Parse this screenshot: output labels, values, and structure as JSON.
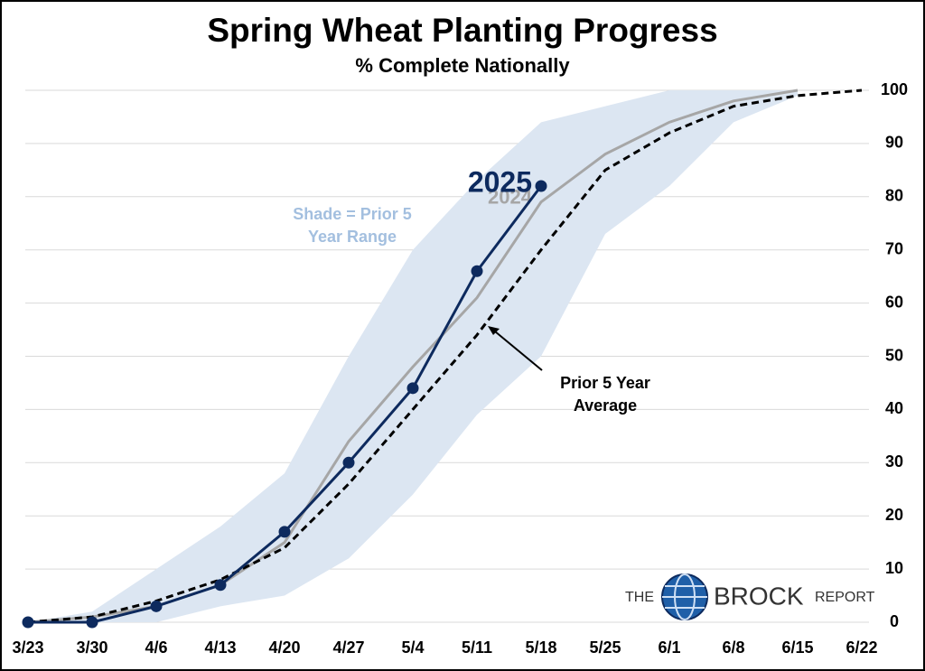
{
  "chart_data": {
    "type": "line",
    "title": "Spring Wheat Planting Progress",
    "subtitle": "% Complete Nationally",
    "categories": [
      "3/23",
      "3/30",
      "4/6",
      "4/13",
      "4/20",
      "4/27",
      "5/4",
      "5/11",
      "5/18",
      "5/25",
      "6/1",
      "6/8",
      "6/15",
      "6/22"
    ],
    "range": {
      "color": "#dce6f2",
      "low": [
        0,
        0,
        0,
        3,
        5,
        12,
        24,
        39,
        50,
        73,
        82,
        94,
        99,
        null
      ],
      "high": [
        0,
        2,
        10,
        18,
        28,
        50,
        70,
        83,
        94,
        97,
        100,
        100,
        100,
        null
      ]
    },
    "series": [
      {
        "name": "2024",
        "color": "#a6a6a6",
        "style": "solid",
        "markers": false,
        "values": [
          0,
          1,
          3,
          7,
          15,
          34,
          48,
          61,
          79,
          88,
          94,
          98,
          100,
          null
        ]
      },
      {
        "color": "#000000",
        "style": "dashed",
        "markers": false,
        "values": [
          0,
          1,
          4,
          8,
          14,
          26,
          40,
          54,
          70,
          85,
          92,
          97,
          99,
          100
        ]
      },
      {
        "name": "2025",
        "color": "#0d2a5e",
        "style": "solid",
        "markers": true,
        "values": [
          0,
          0,
          3,
          7,
          17,
          30,
          44,
          66,
          82,
          null,
          null,
          null,
          null,
          null
        ]
      }
    ],
    "annotations": {
      "shade": [
        "Shade = Prior 5",
        "Year Range"
      ],
      "average": [
        "Prior 5 Year",
        "Average"
      ]
    },
    "logo": [
      "THE",
      "BROCK",
      "REPORT"
    ],
    "ylim": [
      0,
      100
    ],
    "yticks": [
      0,
      10,
      20,
      30,
      40,
      50,
      60,
      70,
      80,
      90,
      100
    ],
    "y_axis_side": "right",
    "grid": true
  }
}
